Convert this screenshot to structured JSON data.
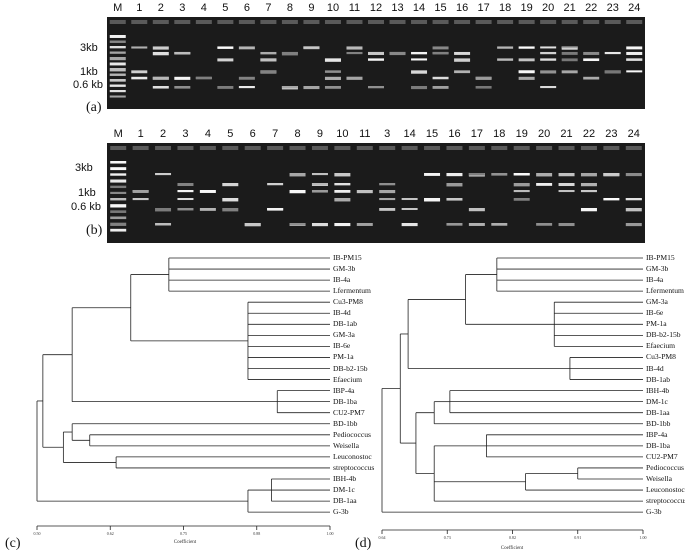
{
  "gel_a": {
    "panel_label": "(a)",
    "lane_labels": [
      "M",
      "1",
      "2",
      "3",
      "4",
      "5",
      "6",
      "7",
      "8",
      "9",
      "10",
      "11",
      "12",
      "13",
      "14",
      "15",
      "16",
      "17",
      "18",
      "19",
      "20",
      "21",
      "22",
      "23",
      "24"
    ],
    "size_markers": [
      "3kb",
      "1kb",
      "0.6 kb"
    ]
  },
  "gel_b": {
    "panel_label": "(b)",
    "lane_labels": [
      "M",
      "1",
      "2",
      "3",
      "4",
      "5",
      "6",
      "7",
      "8",
      "9",
      "10",
      "11",
      "3",
      "14",
      "15",
      "16",
      "17",
      "18",
      "19",
      "20",
      "21",
      "22",
      "23",
      "24"
    ],
    "size_markers": [
      "3kb",
      "1kb",
      "0.6 kb"
    ]
  },
  "dendrogram_c": {
    "panel_label": "(c)",
    "leaves": [
      "IB-PM15",
      "GM-3b",
      "IB-4a",
      "Lfermentum",
      "Cu3-PM8",
      "IB-4d",
      "DB-1ab",
      "GM-3a",
      "IB-6e",
      "PM-1a",
      "DB-b2-15b",
      "Efaecium",
      "IBP-4a",
      "DB-1ba",
      "CU2-PM7",
      "BD-1bb",
      "Pediococcus",
      "Weisella",
      "Leuconostoc",
      "streptococcus",
      "IBH-4b",
      "DM-1c",
      "DB-1aa",
      "G-3b"
    ],
    "axis_ticks": [
      "0.50",
      "0.62",
      "0.75",
      "0.88",
      "1.00"
    ],
    "axis_title": "Coefficient"
  },
  "dendrogram_d": {
    "panel_label": "(d)",
    "leaves": [
      "IB-PM15",
      "GM-3b",
      "IB-4a",
      "Lfermentum",
      "GM-3a",
      "IB-6e",
      "PM-1a",
      "DB-b2-15b",
      "Efaecium",
      "Cu3-PM8",
      "IB-4d",
      "DB-1ab",
      "IBH-4b",
      "DM-1c",
      "DB-1aa",
      "BD-1bb",
      "IBP-4a",
      "DB-1ba",
      "CU2-PM7",
      "Pediococcus",
      "Weisella",
      "Leuconostoc",
      "streptococcus",
      "G-3b"
    ],
    "axis_ticks": [
      "0.64",
      "0.73",
      "0.82",
      "0.91",
      "1.00"
    ],
    "axis_title": "Coefficient"
  }
}
